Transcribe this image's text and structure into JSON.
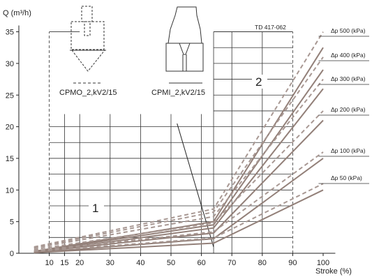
{
  "chart_data": {
    "type": "line",
    "ylabel": "Q (m³/h)",
    "xlabel": "Stroke (%)",
    "doc_ref": "TD 417-062",
    "x_ticks": [
      10,
      15,
      20,
      30,
      40,
      50,
      60,
      70,
      80,
      90,
      100
    ],
    "y_ticks": [
      0,
      5,
      10,
      15,
      20,
      25,
      30,
      35
    ],
    "xlim": [
      0,
      104
    ],
    "ylim": [
      0,
      36
    ],
    "grid": true,
    "regions": [
      {
        "label": "1",
        "x": [
          10,
          64
        ],
        "y": [
          0,
          22
        ]
      },
      {
        "label": "2",
        "x": [
          64,
          90
        ],
        "y": [
          0,
          35
        ]
      }
    ],
    "series_colors": {
      "cpmo": "#a89893",
      "cpmi": "#938079"
    },
    "legend": [
      {
        "label": "CPMO_2,kV2/15",
        "style": "dashed"
      },
      {
        "label": "CPMI_2,kV2/15",
        "style": "solid"
      }
    ],
    "series": [
      {
        "name": "Δp 500 (kPa)",
        "cpmo": [
          [
            5,
            1
          ],
          [
            64,
            7
          ],
          [
            100,
            35
          ]
        ],
        "cpmi": [
          [
            5,
            0.3
          ],
          [
            64,
            5
          ],
          [
            100,
            32.5
          ]
        ]
      },
      {
        "name": "Δp 400 (kPa)",
        "cpmo": [
          [
            5,
            0.9
          ],
          [
            64,
            6.5
          ],
          [
            100,
            31
          ]
        ],
        "cpmi": [
          [
            5,
            0.3
          ],
          [
            64,
            4.5
          ],
          [
            100,
            29
          ]
        ]
      },
      {
        "name": "Δp 300 (kPa)",
        "cpmo": [
          [
            5,
            0.8
          ],
          [
            64,
            5.8
          ],
          [
            100,
            27.5
          ]
        ],
        "cpmi": [
          [
            5,
            0.2
          ],
          [
            64,
            4
          ],
          [
            100,
            26
          ]
        ]
      },
      {
        "name": "Δp 200 (kPa)",
        "cpmo": [
          [
            5,
            0.6
          ],
          [
            64,
            4.8
          ],
          [
            100,
            22.5
          ]
        ],
        "cpmi": [
          [
            5,
            0.2
          ],
          [
            64,
            3.2
          ],
          [
            100,
            21
          ]
        ]
      },
      {
        "name": "Δp 100 (kPa)",
        "cpmo": [
          [
            5,
            0.4
          ],
          [
            64,
            3.4
          ],
          [
            100,
            16
          ]
        ],
        "cpmi": [
          [
            5,
            0.1
          ],
          [
            64,
            2.3
          ],
          [
            100,
            15
          ]
        ]
      },
      {
        "name": "Δp 50 (kPa)",
        "cpmo": [
          [
            5,
            0.3
          ],
          [
            64,
            2.4
          ],
          [
            100,
            11
          ]
        ],
        "cpmi": [
          [
            5,
            0.1
          ],
          [
            64,
            1.6
          ],
          [
            100,
            10
          ]
        ]
      }
    ]
  }
}
